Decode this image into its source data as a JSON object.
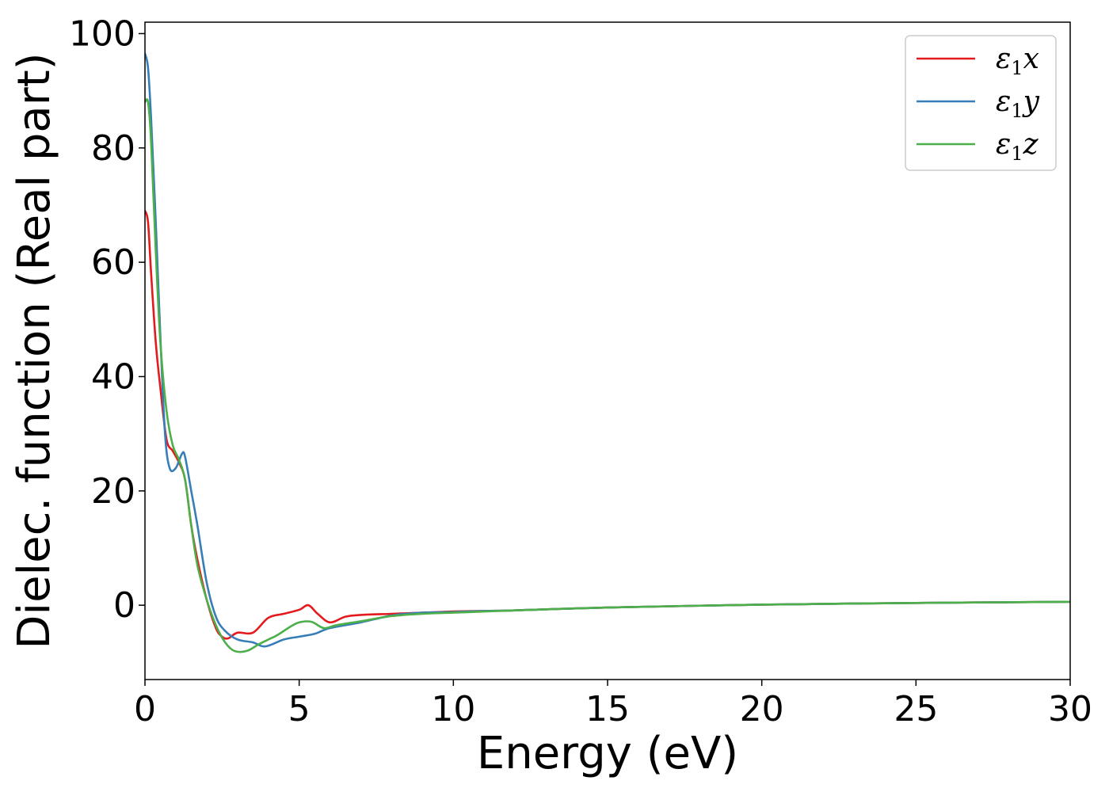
{
  "chart_data": {
    "type": "line",
    "xlabel": "Energy (eV)",
    "ylabel": "Dielec. function (Real part)",
    "xlim": [
      0,
      30
    ],
    "ylim": [
      -13,
      102
    ],
    "xticks": [
      0,
      5,
      10,
      15,
      20,
      25,
      30
    ],
    "yticks": [
      0,
      20,
      40,
      60,
      80,
      100
    ],
    "grid": false,
    "legend_position": "top-right",
    "series": [
      {
        "name": "ε1x",
        "legend_symbol": "ε",
        "legend_sub": "1",
        "legend_var": "x",
        "color": "#e41a1c",
        "points": [
          [
            0,
            69
          ],
          [
            0.1,
            67
          ],
          [
            0.2,
            58
          ],
          [
            0.35,
            46
          ],
          [
            0.5,
            38
          ],
          [
            0.7,
            29
          ],
          [
            0.9,
            27
          ],
          [
            1.1,
            25
          ],
          [
            1.3,
            22
          ],
          [
            1.5,
            14
          ],
          [
            1.7,
            8
          ],
          [
            2.0,
            1
          ],
          [
            2.3,
            -4
          ],
          [
            2.5,
            -5.5
          ],
          [
            2.7,
            -5.8
          ],
          [
            3.0,
            -4.8
          ],
          [
            3.5,
            -4.8
          ],
          [
            4.0,
            -2.2
          ],
          [
            4.5,
            -1.5
          ],
          [
            5.0,
            -0.8
          ],
          [
            5.3,
            0
          ],
          [
            5.6,
            -1.5
          ],
          [
            6.0,
            -3
          ],
          [
            6.5,
            -2
          ],
          [
            7.0,
            -1.7
          ],
          [
            8.0,
            -1.5
          ],
          [
            9.0,
            -1.3
          ],
          [
            10.0,
            -1.1
          ],
          [
            11.0,
            -1.0
          ],
          [
            12.0,
            -0.9
          ],
          [
            15.0,
            -0.4
          ],
          [
            20.0,
            0.1
          ],
          [
            25.0,
            0.4
          ],
          [
            30.0,
            0.6
          ]
        ]
      },
      {
        "name": "ε1y",
        "legend_symbol": "ε",
        "legend_sub": "1",
        "legend_var": "y",
        "color": "#377eb8",
        "points": [
          [
            0,
            96.5
          ],
          [
            0.1,
            94
          ],
          [
            0.2,
            85
          ],
          [
            0.35,
            67
          ],
          [
            0.5,
            47
          ],
          [
            0.65,
            30
          ],
          [
            0.8,
            24
          ],
          [
            1.0,
            24
          ],
          [
            1.2,
            26.5
          ],
          [
            1.3,
            26
          ],
          [
            1.5,
            20
          ],
          [
            1.7,
            14
          ],
          [
            2.0,
            4
          ],
          [
            2.3,
            -2
          ],
          [
            2.6,
            -4.5
          ],
          [
            3.0,
            -6
          ],
          [
            3.5,
            -6.5
          ],
          [
            3.9,
            -7.2
          ],
          [
            4.5,
            -6
          ],
          [
            5.0,
            -5.5
          ],
          [
            5.5,
            -5
          ],
          [
            6.0,
            -4
          ],
          [
            7.0,
            -3
          ],
          [
            8.0,
            -1.8
          ],
          [
            9.0,
            -1.3
          ],
          [
            10.0,
            -1.2
          ],
          [
            11.0,
            -1.0
          ],
          [
            12.0,
            -0.9
          ],
          [
            15.0,
            -0.4
          ],
          [
            20.0,
            0.1
          ],
          [
            25.0,
            0.4
          ],
          [
            30.0,
            0.6
          ]
        ]
      },
      {
        "name": "ε1z",
        "legend_symbol": "ε",
        "legend_sub": "1",
        "legend_var": "z",
        "color": "#4daf4a",
        "points": [
          [
            0,
            88
          ],
          [
            0.1,
            88
          ],
          [
            0.2,
            81
          ],
          [
            0.35,
            62
          ],
          [
            0.5,
            46
          ],
          [
            0.7,
            34
          ],
          [
            0.9,
            28
          ],
          [
            1.1,
            25.5
          ],
          [
            1.3,
            22
          ],
          [
            1.5,
            14
          ],
          [
            1.7,
            7
          ],
          [
            2.0,
            1
          ],
          [
            2.3,
            -3.5
          ],
          [
            2.6,
            -6.5
          ],
          [
            2.9,
            -8
          ],
          [
            3.3,
            -8
          ],
          [
            3.7,
            -6.8
          ],
          [
            4.0,
            -6
          ],
          [
            4.3,
            -5.2
          ],
          [
            4.7,
            -3.8
          ],
          [
            5.0,
            -3.0
          ],
          [
            5.4,
            -2.9
          ],
          [
            5.8,
            -4
          ],
          [
            6.2,
            -3.5
          ],
          [
            7.0,
            -2.8
          ],
          [
            8.0,
            -1.9
          ],
          [
            9.0,
            -1.5
          ],
          [
            10.0,
            -1.3
          ],
          [
            11.0,
            -1.1
          ],
          [
            12.0,
            -0.9
          ],
          [
            15.0,
            -0.4
          ],
          [
            20.0,
            0.1
          ],
          [
            25.0,
            0.4
          ],
          [
            30.0,
            0.6
          ]
        ]
      }
    ]
  }
}
